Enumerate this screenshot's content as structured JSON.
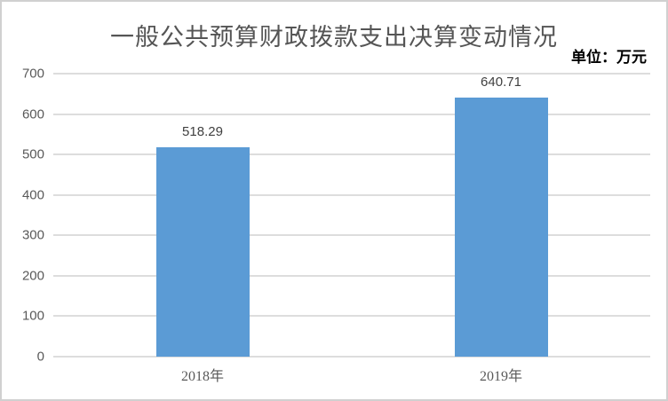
{
  "chart_data": {
    "type": "bar",
    "title": "一般公共预算财政拨款支出决算变动情况",
    "unit_label": "单位：万元",
    "categories": [
      "2018年",
      "2019年"
    ],
    "values": [
      518.29,
      640.71
    ],
    "data_labels": [
      "518.29",
      "640.71"
    ],
    "xlabel": "",
    "ylabel": "",
    "ylim": [
      0,
      700
    ],
    "yticks": [
      0,
      100,
      200,
      300,
      400,
      500,
      600,
      700
    ],
    "grid": true,
    "legend": "none",
    "colors": {
      "bar": "#5B9BD5",
      "gridline": "#DDDDDD",
      "axis_line": "#D6D6D6",
      "tick_text": "#595959",
      "title_text": "#555555",
      "data_label_text": "#404040",
      "unit_text": "#000000",
      "frame_border": "#D0D0D0",
      "background": "#FFFFFF"
    }
  }
}
